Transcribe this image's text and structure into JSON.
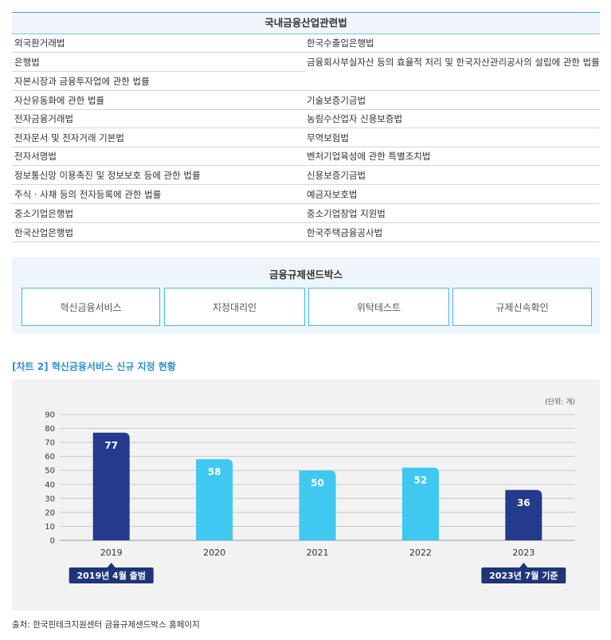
{
  "law_table": {
    "title": "국내금융산업관련법",
    "left": [
      "외국환거래법",
      "은행법",
      "자본시장과 금융투자업에 관한 법률",
      "자산유동화에 관한 법률",
      "전자금융거래법",
      "전자문서 및 전자거래 기본법",
      "전자서명법",
      "정보통신망 이용촉진 및 정보보호 등에 관한 법률",
      "주식 · 사채 등의 전자등록에 관한 법률",
      "중소기업은행법",
      "한국산업은행법"
    ],
    "right": [
      "한국수출입은행법",
      "금융회사부실자산 등의 효율적 처리 및 한국자산관리공사의 설립에 관한 법률",
      "기술보증기금법",
      "농림수산업자 신용보증법",
      "무역보험법",
      "벤처기업육성에 관한 특별조치법",
      "신용보증기금법",
      "예금자보호법",
      "중소기업창업 지원법",
      "한국주택금융공사법"
    ]
  },
  "sandbox": {
    "title": "금융규제샌드박스",
    "items": [
      "혁신금융서비스",
      "지정대리인",
      "위탁테스트",
      "규제신속확인"
    ]
  },
  "chart_caption": "[차트 2] 혁신금융서비스 신규 지정 현황",
  "chart_data": {
    "type": "bar",
    "title": "",
    "unit_label": "(단위: 개)",
    "categories": [
      "2019",
      "2020",
      "2021",
      "2022",
      "2023"
    ],
    "values": [
      77,
      58,
      50,
      52,
      36
    ],
    "ylim": [
      0,
      90
    ],
    "yticks": [
      0,
      10,
      20,
      30,
      40,
      50,
      60,
      70,
      80,
      90
    ],
    "grid": true,
    "bar_colors": [
      "#253a8c",
      "#3fc8f0",
      "#3fc8f0",
      "#3fc8f0",
      "#253a8c"
    ],
    "annotations": [
      {
        "category": "2019",
        "text": "2019년 4월 출범"
      },
      {
        "category": "2023",
        "text": "2023년 7월 기준"
      }
    ]
  },
  "source": "출처: 한국핀테크지원센터 금융규제샌드박스 홈페이지"
}
